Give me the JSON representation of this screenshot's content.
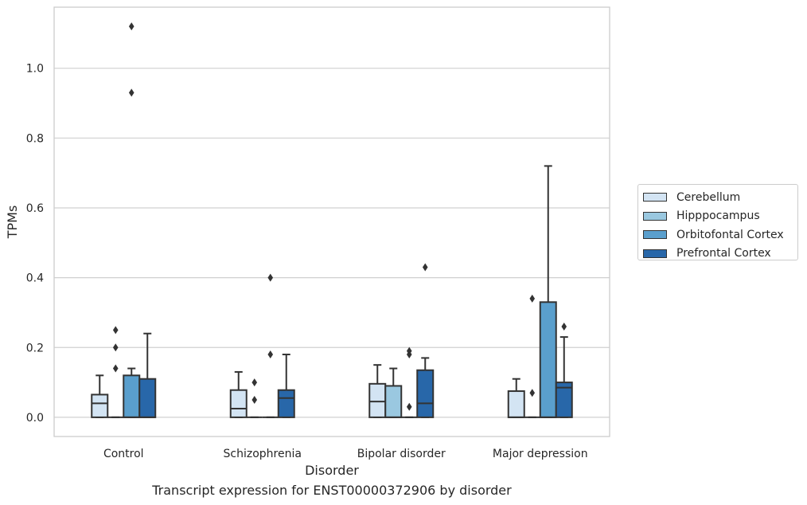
{
  "caption": "Transcript expression for ENST00000372906 by disorder",
  "chart_data": {
    "type": "box",
    "xlabel": "Disorder",
    "ylabel": "TPMs",
    "ylim": [
      -0.055,
      1.175
    ],
    "yticks": [
      0.0,
      0.2,
      0.4,
      0.6,
      0.8,
      1.0
    ],
    "ytick_labels": [
      "0.0",
      "0.2",
      "0.4",
      "0.6",
      "0.8",
      "1.0"
    ],
    "categories": [
      "Control",
      "Schizophrenia",
      "Bipolar disorder",
      "Major depression"
    ],
    "grid": "horizontal",
    "legend_position": "right",
    "series": [
      {
        "name": "Cerebellum",
        "color": "#d3e4f3",
        "boxes": [
          {
            "whislo": 0.0,
            "q1": 0.0,
            "med": 0.04,
            "q3": 0.065,
            "whishi": 0.12,
            "fliers": []
          },
          {
            "whislo": 0.0,
            "q1": 0.0,
            "med": 0.025,
            "q3": 0.078,
            "whishi": 0.13,
            "fliers": []
          },
          {
            "whislo": 0.0,
            "q1": 0.0,
            "med": 0.045,
            "q3": 0.096,
            "whishi": 0.15,
            "fliers": []
          },
          {
            "whislo": 0.0,
            "q1": 0.0,
            "med": 0.0,
            "q3": 0.075,
            "whishi": 0.11,
            "fliers": []
          }
        ]
      },
      {
        "name": "Hipppocampus",
        "color": "#9ac8e0",
        "boxes": [
          {
            "whislo": 0.0,
            "q1": 0.0,
            "med": 0.0,
            "q3": 0.0,
            "whishi": 0.0,
            "fliers": [
              0.14,
              0.2,
              0.25
            ]
          },
          {
            "whislo": 0.0,
            "q1": 0.0,
            "med": 0.0,
            "q3": 0.0,
            "whishi": 0.0,
            "fliers": [
              0.05,
              0.1
            ]
          },
          {
            "whislo": 0.0,
            "q1": 0.0,
            "med": 0.0,
            "q3": 0.09,
            "whishi": 0.14,
            "fliers": []
          },
          {
            "whislo": 0.0,
            "q1": 0.0,
            "med": 0.0,
            "q3": 0.0,
            "whishi": 0.0,
            "fliers": [
              0.07,
              0.34
            ]
          }
        ]
      },
      {
        "name": "Orbitofontal Cortex",
        "color": "#5a9fcd",
        "boxes": [
          {
            "whislo": 0.0,
            "q1": 0.0,
            "med": 0.0,
            "q3": 0.12,
            "whishi": 0.14,
            "fliers": [
              0.93,
              1.12
            ]
          },
          {
            "whislo": 0.0,
            "q1": 0.0,
            "med": 0.0,
            "q3": 0.0,
            "whishi": 0.0,
            "fliers": [
              0.18,
              0.4
            ]
          },
          {
            "whislo": 0.0,
            "q1": 0.0,
            "med": 0.0,
            "q3": 0.0,
            "whishi": 0.0,
            "fliers": [
              0.03,
              0.18,
              0.19
            ]
          },
          {
            "whislo": 0.0,
            "q1": 0.0,
            "med": 0.0,
            "q3": 0.33,
            "whishi": 0.72,
            "fliers": []
          }
        ]
      },
      {
        "name": "Prefrontal Cortex",
        "color": "#2867a9",
        "boxes": [
          {
            "whislo": 0.0,
            "q1": 0.0,
            "med": 0.0,
            "q3": 0.11,
            "whishi": 0.24,
            "fliers": []
          },
          {
            "whislo": 0.0,
            "q1": 0.0,
            "med": 0.055,
            "q3": 0.078,
            "whishi": 0.18,
            "fliers": []
          },
          {
            "whislo": 0.0,
            "q1": 0.0,
            "med": 0.04,
            "q3": 0.135,
            "whishi": 0.17,
            "fliers": [
              0.43
            ]
          },
          {
            "whislo": 0.0,
            "q1": 0.0,
            "med": 0.085,
            "q3": 0.1,
            "whishi": 0.23,
            "fliers": [
              0.26
            ]
          }
        ]
      }
    ]
  }
}
